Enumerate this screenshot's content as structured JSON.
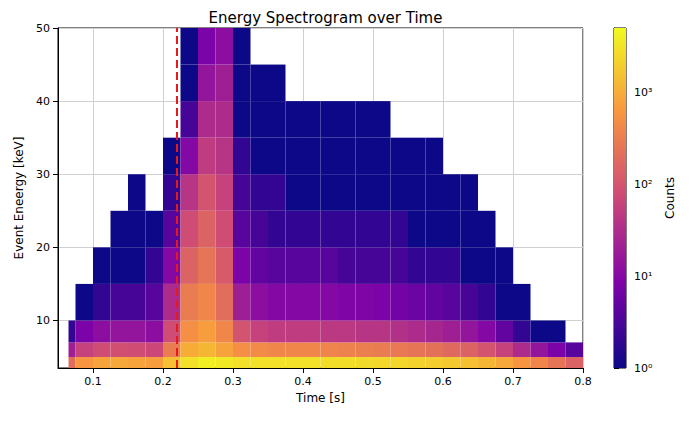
{
  "chart_data": {
    "type": "heatmap",
    "title": "Energy Spectrogram over Time",
    "x_label": "Time [s]",
    "y_label": "Event Eneergy [keV]",
    "xlim": [
      0.05,
      0.8
    ],
    "xticks": [
      0.1,
      0.2,
      0.3,
      0.4,
      0.5,
      0.6,
      0.7,
      0.8
    ],
    "ylim": [
      3.5,
      50
    ],
    "yticks": [
      10,
      20,
      30,
      40,
      50
    ],
    "grid": true,
    "x_bins": [
      0.065,
      0.075,
      0.1,
      0.125,
      0.15,
      0.175,
      0.2,
      0.225,
      0.25,
      0.275,
      0.3,
      0.325,
      0.35,
      0.375,
      0.4,
      0.425,
      0.45,
      0.475,
      0.5,
      0.525,
      0.55,
      0.575,
      0.6,
      0.625,
      0.65,
      0.675,
      0.7,
      0.725,
      0.75,
      0.775,
      0.8
    ],
    "y_bins": [
      3.5,
      5,
      7,
      10,
      15,
      20,
      25,
      30,
      35,
      40,
      45,
      50
    ],
    "counts": [
      [
        200,
        600,
        800,
        900,
        800,
        700,
        1500,
        3000,
        4000,
        3500,
        3000,
        3000,
        3000,
        3000,
        3000,
        2800,
        2800,
        2600,
        2500,
        2400,
        2200,
        2000,
        1800,
        1500,
        1200,
        900,
        600,
        400,
        250,
        150
      ],
      [
        20,
        60,
        80,
        90,
        80,
        70,
        300,
        1000,
        1200,
        800,
        500,
        450,
        400,
        400,
        400,
        380,
        350,
        330,
        300,
        280,
        250,
        220,
        180,
        150,
        100,
        60,
        30,
        15,
        8,
        4
      ],
      [
        2,
        8,
        12,
        15,
        15,
        12,
        80,
        500,
        700,
        400,
        100,
        60,
        50,
        50,
        50,
        45,
        45,
        40,
        40,
        35,
        30,
        25,
        20,
        15,
        10,
        5,
        2,
        1,
        1,
        null
      ],
      [
        null,
        1,
        2,
        3,
        3,
        4,
        30,
        300,
        400,
        200,
        20,
        12,
        10,
        10,
        10,
        10,
        9,
        9,
        8,
        7,
        6,
        5,
        4,
        3,
        2,
        1,
        1,
        null,
        null,
        null
      ],
      [
        null,
        null,
        1,
        1,
        1,
        2,
        10,
        150,
        250,
        120,
        8,
        5,
        4,
        4,
        4,
        4,
        3,
        3,
        3,
        3,
        2,
        2,
        2,
        1,
        1,
        1,
        null,
        null,
        null,
        null
      ],
      [
        null,
        null,
        null,
        1,
        1,
        1,
        4,
        80,
        150,
        80,
        4,
        3,
        2,
        2,
        2,
        2,
        2,
        2,
        2,
        2,
        1,
        1,
        1,
        1,
        1,
        null,
        null,
        null,
        null,
        null
      ],
      [
        null,
        null,
        null,
        null,
        1,
        null,
        2,
        40,
        100,
        60,
        3,
        2,
        2,
        1,
        1,
        1,
        1,
        1,
        1,
        1,
        1,
        1,
        1,
        1,
        null,
        null,
        null,
        null,
        null,
        null
      ],
      [
        null,
        null,
        null,
        null,
        null,
        null,
        1,
        10,
        50,
        40,
        2,
        1,
        1,
        1,
        1,
        1,
        1,
        1,
        1,
        1,
        1,
        1,
        null,
        null,
        null,
        null,
        null,
        null,
        null,
        null
      ],
      [
        null,
        null,
        null,
        null,
        null,
        null,
        null,
        3,
        30,
        30,
        1,
        1,
        1,
        1,
        1,
        1,
        1,
        1,
        1,
        null,
        null,
        null,
        null,
        null,
        null,
        null,
        null,
        null,
        null,
        null
      ],
      [
        null,
        null,
        null,
        null,
        null,
        null,
        null,
        1,
        15,
        20,
        1,
        1,
        1,
        null,
        null,
        null,
        null,
        null,
        null,
        null,
        null,
        null,
        null,
        null,
        null,
        null,
        null,
        null,
        null,
        null
      ],
      [
        null,
        null,
        null,
        null,
        null,
        null,
        null,
        1,
        8,
        12,
        1,
        null,
        null,
        null,
        null,
        null,
        null,
        null,
        null,
        null,
        null,
        null,
        null,
        null,
        null,
        null,
        null,
        null,
        null,
        null
      ]
    ],
    "colorbar": {
      "label": "Counts",
      "log": true,
      "range": [
        1,
        5000
      ],
      "ticks": [
        {
          "value": 1,
          "label": "10⁰"
        },
        {
          "value": 10,
          "label": "10¹"
        },
        {
          "value": 100,
          "label": "10²"
        },
        {
          "value": 1000,
          "label": "10³"
        }
      ]
    },
    "annotations": [
      {
        "type": "vline",
        "x": 0.22,
        "color": "#e41a1c",
        "line_style": "dashed"
      }
    ]
  }
}
